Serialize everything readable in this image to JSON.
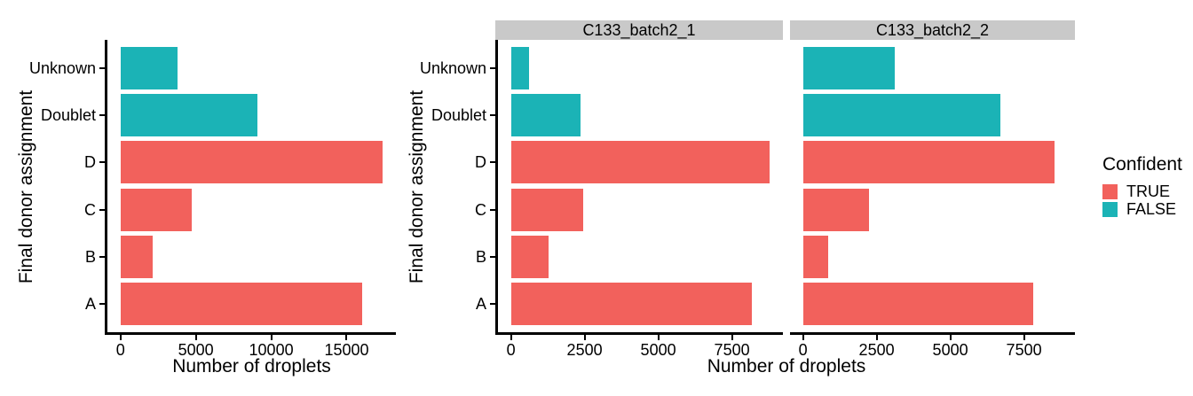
{
  "colors": {
    "confident_true": "#F2615C",
    "confident_false": "#1BB3B6",
    "strip_bg": "#C9C9C9",
    "axis": "#000000"
  },
  "legend": {
    "title": "Confident",
    "items": [
      {
        "label": "TRUE",
        "color": "#F2615C"
      },
      {
        "label": "FALSE",
        "color": "#1BB3B6"
      }
    ]
  },
  "chart_data": [
    {
      "type": "bar",
      "orientation": "horizontal",
      "title": "",
      "xlabel": "Number of droplets",
      "ylabel": "Final donor assignment",
      "categories": [
        "Unknown",
        "Doublet",
        "D",
        "C",
        "B",
        "A"
      ],
      "values": [
        3760,
        9070,
        17400,
        4700,
        2120,
        16050
      ],
      "confident": [
        false,
        false,
        true,
        true,
        true,
        true
      ],
      "x_ticks": [
        0,
        5000,
        10000,
        15000
      ],
      "xlim": [
        0,
        17400
      ],
      "grid": false,
      "legend_position": "none"
    },
    {
      "type": "bar",
      "orientation": "horizontal",
      "title": "",
      "xlabel": "Number of droplets",
      "ylabel": "Final donor assignment",
      "categories": [
        "Unknown",
        "Doublet",
        "D",
        "C",
        "B",
        "A"
      ],
      "facets": [
        {
          "label": "C133_batch2_1",
          "values": [
            630,
            2360,
            8790,
            2440,
            1270,
            8190
          ]
        },
        {
          "label": "C133_batch2_2",
          "values": [
            3130,
            6710,
            8530,
            2250,
            860,
            7820
          ]
        }
      ],
      "confident": [
        false,
        false,
        true,
        true,
        true,
        true
      ],
      "x_ticks": [
        0,
        2500,
        5000,
        7500
      ],
      "xlim": [
        0,
        8790
      ],
      "grid": false,
      "legend_position": "right",
      "legend_title": "Confident"
    }
  ]
}
